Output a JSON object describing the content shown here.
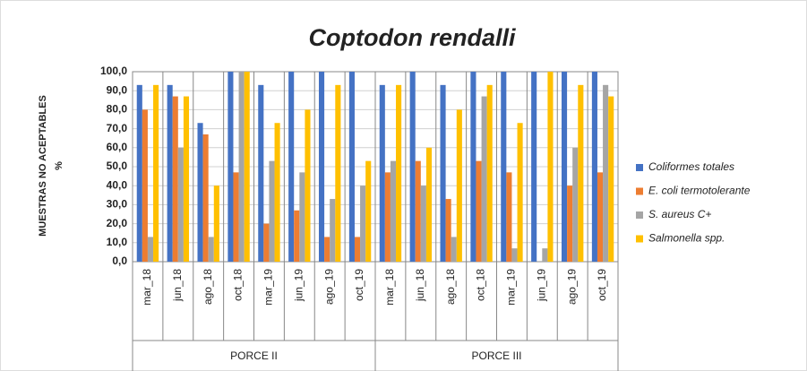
{
  "chart_data": {
    "type": "bar",
    "title": "Coptodon rendalli",
    "y_label": [
      "MUESTRAS NO ACEPTABLES",
      "%"
    ],
    "categories": [
      "mar_18",
      "jun_18",
      "ago_18",
      "oct_18",
      "mar_19",
      "jun_19",
      "ago_19",
      "oct_19",
      "mar_18",
      "jun_18",
      "ago_18",
      "oct_18",
      "mar_19",
      "jun_19",
      "ago_19",
      "oct_19"
    ],
    "group_labels": [
      "PORCE II",
      "PORCE III"
    ],
    "series": [
      {
        "name": "Coliformes totales",
        "color": "#4472c4",
        "values": [
          93,
          93,
          73,
          100,
          93,
          100,
          100,
          100,
          93,
          100,
          93,
          100,
          100,
          100,
          100,
          100
        ]
      },
      {
        "name": "E. coli termotolerante",
        "color": "#ed7d31",
        "values": [
          80,
          87,
          67,
          47,
          20,
          27,
          13,
          13,
          47,
          53,
          33,
          53,
          47,
          0,
          40,
          47
        ]
      },
      {
        "name": "S. aureus C+",
        "color": "#a5a5a5",
        "values": [
          13,
          60,
          13,
          100,
          53,
          47,
          33,
          40,
          53,
          40,
          13,
          87,
          7,
          7,
          60,
          93
        ]
      },
      {
        "name": "Salmonella spp.",
        "color": "#ffc000",
        "values": [
          93,
          87,
          40,
          100,
          73,
          80,
          93,
          53,
          93,
          60,
          80,
          93,
          73,
          100,
          93,
          87
        ]
      }
    ],
    "ylim": [
      0,
      100
    ],
    "yticks": [
      {
        "value": 0,
        "label": "0,0"
      },
      {
        "value": 10,
        "label": "10,0"
      },
      {
        "value": 20,
        "label": "20,0"
      },
      {
        "value": 30,
        "label": "30,0"
      },
      {
        "value": 40,
        "label": "40,0"
      },
      {
        "value": 50,
        "label": "50,0"
      },
      {
        "value": 60,
        "label": "60,0"
      },
      {
        "value": 70,
        "label": "70,0"
      },
      {
        "value": 80,
        "label": "80,0"
      },
      {
        "value": 90,
        "label": "90,0"
      },
      {
        "value": 100,
        "label": "100,0"
      }
    ],
    "legend": "right"
  }
}
